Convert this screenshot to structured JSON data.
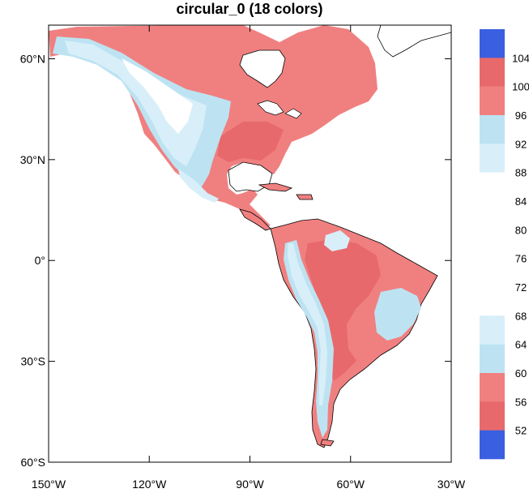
{
  "title": "circular_0 (18 colors)",
  "map": {
    "projection": "cylindrical-equidistant",
    "lon_range": [
      -150,
      -30
    ],
    "lat_range": [
      -60,
      70
    ],
    "x_ticks": [
      {
        "lon": -150,
        "label": "150°W"
      },
      {
        "lon": -120,
        "label": "120°W"
      },
      {
        "lon": -90,
        "label": "90°W"
      },
      {
        "lon": -60,
        "label": "60°W"
      },
      {
        "lon": -30,
        "label": "30°W"
      }
    ],
    "y_ticks": [
      {
        "lat": 60,
        "label": "60°N"
      },
      {
        "lat": 30,
        "label": "30°N"
      },
      {
        "lat": 0,
        "label": "0°"
      },
      {
        "lat": -30,
        "label": "30°S"
      },
      {
        "lat": -60,
        "label": "60°S"
      }
    ],
    "fill_colors": {
      "land_warm": "#f08080",
      "land_hot": "#e8696b",
      "land_cool": "#bde3f2",
      "land_cold": "#d8eff9",
      "coast": "#000000"
    }
  },
  "colorbar": {
    "levels": [
      "104",
      "100",
      "96",
      "92",
      "88",
      "84",
      "80",
      "76",
      "72",
      "68",
      "64",
      "60",
      "56",
      "52"
    ],
    "colors": [
      "#3a5fe0",
      "#e8696b",
      "#f08080",
      "#bde3f2",
      "#d8eff9",
      "#ffffff",
      "#ffffff",
      "#ffffff",
      "#ffffff",
      "#ffffff",
      "#d8eff9",
      "#bde3f2",
      "#f08080",
      "#e8696b",
      "#3a5fe0"
    ]
  }
}
